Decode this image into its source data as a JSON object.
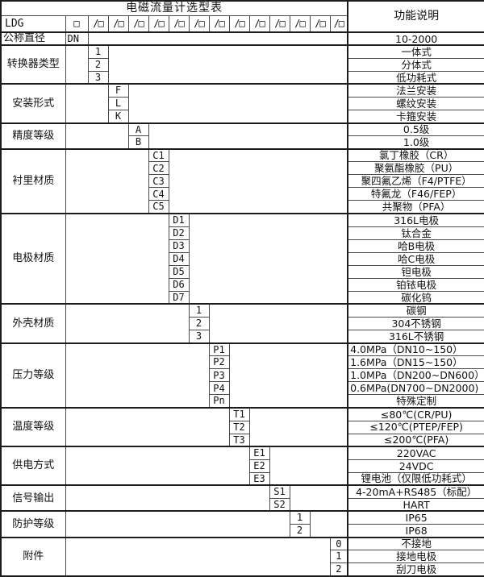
{
  "table": {
    "title": "电磁流量计选型表"
  },
  "header": {
    "model_prefix": "LDG",
    "first_box": "□",
    "slot_boxes": [
      "/□",
      "/□",
      "/□",
      "/□",
      "/□",
      "/□",
      "/□",
      "/□",
      "/□",
      "/□",
      "/□",
      "/□",
      "/□"
    ],
    "function_header": "功能说明"
  },
  "categories": [
    {
      "label": "公称直径",
      "col": 1,
      "label_align": "left",
      "code_align": "left",
      "options": [
        {
          "code": "DN",
          "desc": "10-2000"
        }
      ]
    },
    {
      "label": "转换器类型",
      "col": 2,
      "options": [
        {
          "code": "1",
          "desc": "一体式"
        },
        {
          "code": "2",
          "desc": "分体式"
        },
        {
          "code": "3",
          "desc": "低功耗式"
        }
      ]
    },
    {
      "label": "安装形式",
      "col": 3,
      "options": [
        {
          "code": "F",
          "desc": "法兰安装"
        },
        {
          "code": "L",
          "desc": "螺纹安装"
        },
        {
          "code": "K",
          "desc": "卡箍安装"
        }
      ]
    },
    {
      "label": "精度等级",
      "col": 4,
      "options": [
        {
          "code": "A",
          "desc": "0.5级"
        },
        {
          "code": "B",
          "desc": "1.0级"
        }
      ]
    },
    {
      "label": "衬里材质",
      "col": 5,
      "options": [
        {
          "code": "C1",
          "desc": "氯丁橡胶（CR）"
        },
        {
          "code": "C2",
          "desc": "聚氨酯橡胶（PU）"
        },
        {
          "code": "C3",
          "desc": "聚四氟乙烯（F4/PTFE）"
        },
        {
          "code": "C4",
          "desc": "特氟龙（F46/FEP）"
        },
        {
          "code": "C5",
          "desc": "共聚物（PFA）"
        }
      ]
    },
    {
      "label": "电极材质",
      "col": 6,
      "options": [
        {
          "code": "D1",
          "desc": "316L电极"
        },
        {
          "code": "D2",
          "desc": "钛合金"
        },
        {
          "code": "D3",
          "desc": "哈B电极"
        },
        {
          "code": "D4",
          "desc": "哈C电极"
        },
        {
          "code": "D5",
          "desc": "钽电极"
        },
        {
          "code": "D6",
          "desc": "铂铱电极"
        },
        {
          "code": "D7",
          "desc": "碳化钨"
        }
      ]
    },
    {
      "label": "外壳材质",
      "col": 7,
      "options": [
        {
          "code": "1",
          "desc": "碳钢"
        },
        {
          "code": "2",
          "desc": "304不锈钢"
        },
        {
          "code": "3",
          "desc": "316L不锈钢"
        }
      ]
    },
    {
      "label": "压力等级",
      "col": 8,
      "options": [
        {
          "code": "P1",
          "desc": "4.0MPa（DN10~150）",
          "desc_align": "left"
        },
        {
          "code": "P2",
          "desc": "1.6MPa（DN15~150）",
          "desc_align": "left"
        },
        {
          "code": "P3",
          "desc": "1.0MPa（DN200~DN600）",
          "desc_align": "left"
        },
        {
          "code": "P4",
          "desc": "0.6MPa(DN700~DN2000)",
          "desc_align": "left"
        },
        {
          "code": "Pn",
          "desc": "特殊定制"
        }
      ]
    },
    {
      "label": "温度等级",
      "col": 9,
      "options": [
        {
          "code": "T1",
          "desc": "≤80℃(CR/PU)"
        },
        {
          "code": "T2",
          "desc": "≤120℃(PTEP/FEP)"
        },
        {
          "code": "T3",
          "desc": "≤200℃(PFA)"
        }
      ]
    },
    {
      "label": "供电方式",
      "col": 10,
      "options": [
        {
          "code": "E1",
          "desc": "220VAC"
        },
        {
          "code": "E2",
          "desc": "24VDC"
        },
        {
          "code": "E3",
          "desc": "锂电池（仅限低功耗式）"
        }
      ]
    },
    {
      "label": "信号输出",
      "col": 11,
      "options": [
        {
          "code": "S1",
          "desc": "4-20mA+RS485（标配）"
        },
        {
          "code": "S2",
          "desc": "HART"
        }
      ]
    },
    {
      "label": "防护等级",
      "col": 12,
      "options": [
        {
          "code": "1",
          "desc": "IP65"
        },
        {
          "code": "2",
          "desc": "IP68"
        }
      ]
    },
    {
      "label": "附件",
      "col": 14,
      "options": [
        {
          "code": "0",
          "desc": "不接地"
        },
        {
          "code": "1",
          "desc": "接地电极"
        },
        {
          "code": "2",
          "desc": "刮刀电极"
        }
      ]
    }
  ]
}
